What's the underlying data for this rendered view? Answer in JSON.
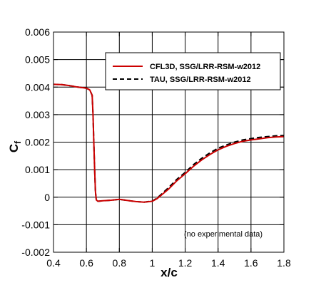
{
  "chart_data": {
    "type": "line",
    "xlabel": "x/c",
    "ylabel": "C",
    "ylabel_subscript": "f",
    "xlim": [
      0.4,
      1.8
    ],
    "ylim": [
      -0.002,
      0.006
    ],
    "xticks": [
      0.4,
      0.6,
      0.8,
      1.0,
      1.2,
      1.4,
      1.6,
      1.8
    ],
    "xtick_labels": [
      "0.4",
      "0.6",
      "0.8",
      "1",
      "1.2",
      "1.4",
      "1.6",
      "1.8"
    ],
    "yticks": [
      -0.002,
      -0.001,
      0,
      0.001,
      0.002,
      0.003,
      0.004,
      0.005,
      0.006
    ],
    "ytick_labels": [
      "-0.002",
      "-0.001",
      "0",
      "0.001",
      "0.002",
      "0.003",
      "0.004",
      "0.005",
      "0.006"
    ],
    "grid": true,
    "legend_position": "top-right",
    "annotation": "(no experimental data)",
    "series": [
      {
        "name": "CFL3D, SSG/LRR-RSM-w2012",
        "color": "#cc0000",
        "dash": "solid",
        "x": [
          0.4,
          0.45,
          0.5,
          0.55,
          0.6,
          0.62,
          0.635,
          0.64,
          0.645,
          0.65,
          0.655,
          0.66,
          0.67,
          0.7,
          0.75,
          0.8,
          0.85,
          0.9,
          0.95,
          1.0,
          1.03,
          1.06,
          1.1,
          1.15,
          1.2,
          1.25,
          1.3,
          1.35,
          1.4,
          1.45,
          1.5,
          1.55,
          1.6,
          1.65,
          1.7,
          1.75,
          1.8
        ],
        "y": [
          0.0041,
          0.00409,
          0.00405,
          0.004,
          0.00396,
          0.0039,
          0.0037,
          0.003,
          0.002,
          0.001,
          0.0002,
          -0.0001,
          -0.00015,
          -0.00013,
          -0.00011,
          -8e-05,
          -0.00012,
          -0.00016,
          -0.00018,
          -0.00015,
          -5e-05,
          0.0001,
          0.0003,
          0.0006,
          0.00085,
          0.00112,
          0.00135,
          0.00155,
          0.00172,
          0.00185,
          0.00195,
          0.00203,
          0.00208,
          0.00212,
          0.00216,
          0.00219,
          0.0022
        ]
      },
      {
        "name": "TAU, SSG/LRR-RSM-w2012",
        "color": "#000000",
        "dash": "dashed",
        "x": [
          0.4,
          0.45,
          0.5,
          0.55,
          0.6,
          0.62,
          0.635,
          0.64,
          0.645,
          0.65,
          0.655,
          0.66,
          0.67,
          0.7,
          0.75,
          0.8,
          0.85,
          0.9,
          0.95,
          1.0,
          1.03,
          1.06,
          1.1,
          1.15,
          1.2,
          1.25,
          1.3,
          1.35,
          1.4,
          1.45,
          1.5,
          1.55,
          1.6,
          1.65,
          1.7,
          1.75,
          1.8
        ],
        "y": [
          0.0041,
          0.00409,
          0.00405,
          0.004,
          0.00396,
          0.0039,
          0.0037,
          0.003,
          0.002,
          0.001,
          0.0002,
          -0.0001,
          -0.00015,
          -0.00013,
          -0.00011,
          -8e-05,
          -0.00012,
          -0.00016,
          -0.00018,
          -0.00014,
          -3e-05,
          0.00013,
          0.00035,
          0.00065,
          0.0009,
          0.00118,
          0.00141,
          0.00161,
          0.00178,
          0.0019,
          0.002,
          0.00208,
          0.00213,
          0.00217,
          0.0022,
          0.00223,
          0.00224
        ]
      }
    ]
  }
}
